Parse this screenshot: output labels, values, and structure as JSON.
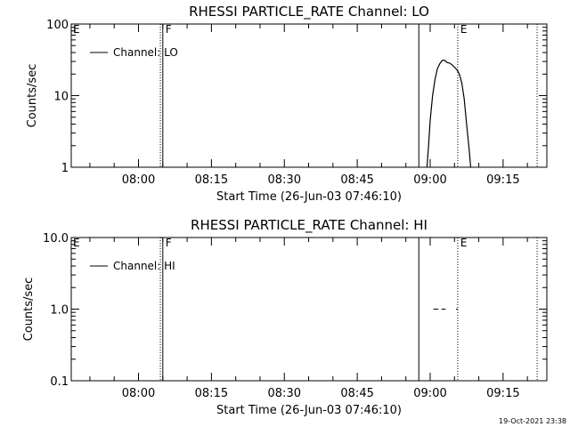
{
  "chart_data": [
    {
      "type": "line",
      "title": "RHESSI PARTICLE_RATE Channel: LO",
      "xlabel": "Start Time (26-Jun-03 07:46:10)",
      "ylabel": "Counts/sec",
      "yscale": "log",
      "ylim": [
        1,
        100
      ],
      "xlim": [
        "07:46:10",
        "09:24:00"
      ],
      "x_ticks": [
        "08:00",
        "08:15",
        "08:30",
        "08:45",
        "09:00",
        "09:15"
      ],
      "y_ticks": [
        "1",
        "10",
        "100"
      ],
      "legend": {
        "label": "Channel: LO",
        "placement": "top-left"
      },
      "markers": [
        {
          "label": "E",
          "time": "07:46:10",
          "style": "dotted"
        },
        {
          "label": "",
          "time": "08:04:30",
          "style": "dotted"
        },
        {
          "label": "F",
          "time": "08:05:00",
          "style": "solid"
        },
        {
          "label": "",
          "time": "08:57:40",
          "style": "solid"
        },
        {
          "label": "E",
          "time": "09:05:40",
          "style": "dotted"
        },
        {
          "label": "",
          "time": "09:22:00",
          "style": "dotted"
        }
      ],
      "series": [
        {
          "name": "Channel: LO",
          "points": [
            [
              "08:59:20",
              1.0
            ],
            [
              "08:59:40",
              2.0
            ],
            [
              "09:00:00",
              4.5
            ],
            [
              "09:00:30",
              10.0
            ],
            [
              "09:01:00",
              17.0
            ],
            [
              "09:01:30",
              24.0
            ],
            [
              "09:02:00",
              28.0
            ],
            [
              "09:02:30",
              31.0
            ],
            [
              "09:03:00",
              31.0
            ],
            [
              "09:03:30",
              29.0
            ],
            [
              "09:04:00",
              28.5
            ],
            [
              "09:04:30",
              27.0
            ],
            [
              "09:05:00",
              25.0
            ],
            [
              "09:05:30",
              23.0
            ],
            [
              "09:06:00",
              20.0
            ],
            [
              "09:06:30",
              15.0
            ],
            [
              "09:07:00",
              9.0
            ],
            [
              "09:07:30",
              4.0
            ],
            [
              "09:08:00",
              1.8
            ],
            [
              "09:08:20",
              1.0
            ]
          ]
        }
      ]
    },
    {
      "type": "line",
      "title": "RHESSI PARTICLE_RATE Channel: HI",
      "xlabel": "Start Time (26-Jun-03 07:46:10)",
      "ylabel": "Counts/sec",
      "yscale": "log",
      "ylim": [
        0.1,
        10
      ],
      "xlim": [
        "07:46:10",
        "09:24:00"
      ],
      "x_ticks": [
        "08:00",
        "08:15",
        "08:30",
        "08:45",
        "09:00",
        "09:15"
      ],
      "y_ticks": [
        "0.1",
        "1.0",
        "10.0"
      ],
      "legend": {
        "label": "Channel: HI",
        "placement": "top-left"
      },
      "markers": [
        {
          "label": "E",
          "time": "07:46:10",
          "style": "dotted"
        },
        {
          "label": "",
          "time": "08:04:30",
          "style": "dotted"
        },
        {
          "label": "F",
          "time": "08:05:00",
          "style": "solid"
        },
        {
          "label": "",
          "time": "08:57:40",
          "style": "solid"
        },
        {
          "label": "E",
          "time": "09:05:40",
          "style": "dotted"
        },
        {
          "label": "",
          "time": "09:22:00",
          "style": "dotted"
        }
      ],
      "series": [
        {
          "name": "Channel: HI",
          "segments": [
            [
              [
                "09:00:40",
                1.0
              ],
              [
                "09:01:40",
                1.0
              ]
            ],
            [
              [
                "09:02:20",
                1.0
              ],
              [
                "09:03:10",
                1.0
              ]
            ],
            [
              [
                "09:05:20",
                1.0
              ],
              [
                "09:05:40",
                1.0
              ]
            ]
          ]
        }
      ]
    }
  ],
  "footer": {
    "timestamp": "19-Oct-2021 23:38"
  }
}
